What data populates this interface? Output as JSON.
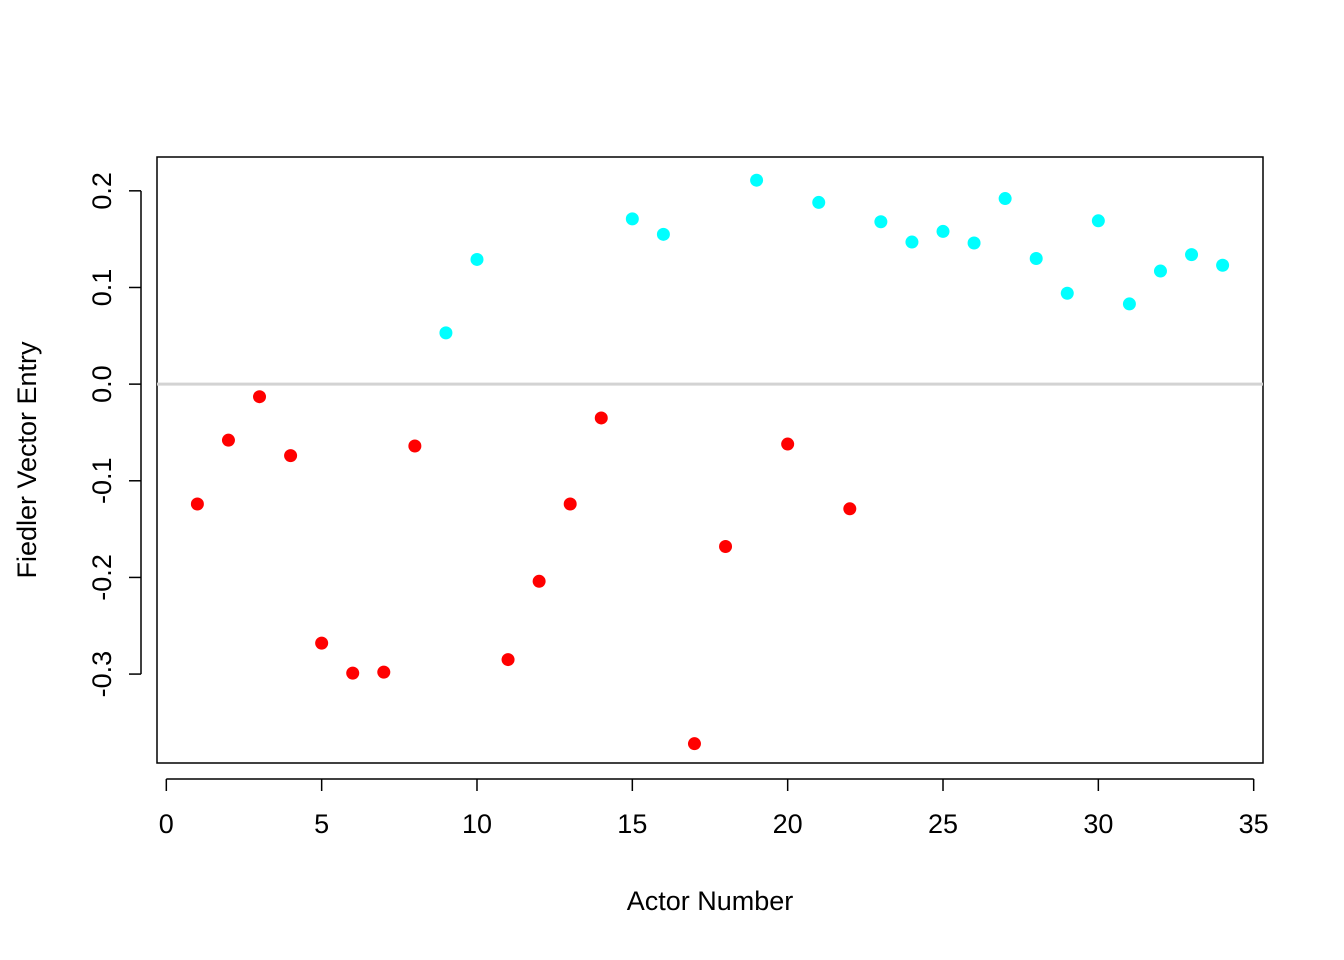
{
  "chart_data": {
    "type": "scatter",
    "title": "",
    "xlabel": "Actor Number",
    "ylabel": "Fiedler Vector Entry",
    "xlim": [
      -0.3,
      35.3
    ],
    "ylim": [
      -0.392,
      0.235
    ],
    "xticks": [
      0,
      5,
      10,
      15,
      20,
      25,
      30,
      35
    ],
    "xtick_labels": [
      "0",
      "5",
      "10",
      "15",
      "20",
      "25",
      "30",
      "35"
    ],
    "yticks": [
      -0.3,
      -0.2,
      -0.1,
      0.0,
      0.1,
      0.2
    ],
    "ytick_labels": [
      "-0.3",
      "-0.2",
      "-0.1",
      "0.0",
      "0.1",
      "0.2"
    ],
    "reference_line": {
      "y": 0.0,
      "color": "#d3d3d3"
    },
    "grid": false,
    "colors": {
      "negative": "#ff0000",
      "positive": "#00ffff"
    },
    "x": [
      1,
      2,
      3,
      4,
      5,
      6,
      7,
      8,
      9,
      10,
      11,
      12,
      13,
      14,
      15,
      16,
      17,
      18,
      19,
      20,
      21,
      22,
      23,
      24,
      25,
      26,
      27,
      28,
      29,
      30,
      31,
      32,
      33,
      34
    ],
    "values": [
      -0.124,
      -0.058,
      -0.013,
      -0.074,
      -0.268,
      -0.299,
      -0.298,
      -0.064,
      0.053,
      0.129,
      -0.285,
      -0.204,
      -0.124,
      -0.035,
      0.171,
      0.155,
      -0.372,
      -0.168,
      0.211,
      -0.062,
      0.188,
      -0.129,
      0.168,
      0.147,
      0.158,
      0.146,
      0.192,
      0.13,
      0.094,
      0.169,
      0.083,
      0.117,
      0.134,
      0.123
    ]
  }
}
